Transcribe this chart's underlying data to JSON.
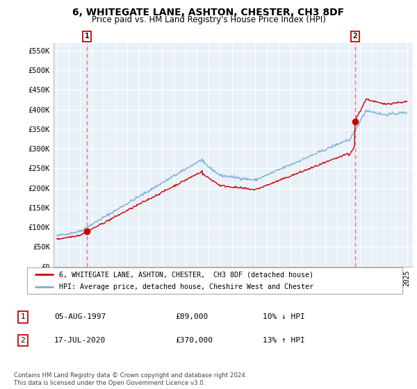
{
  "title": "6, WHITEGATE LANE, ASHTON, CHESTER, CH3 8DF",
  "subtitle": "Price paid vs. HM Land Registry's House Price Index (HPI)",
  "title_fontsize": 10,
  "subtitle_fontsize": 8.5,
  "ylim": [
    0,
    570000
  ],
  "yticks": [
    0,
    50000,
    100000,
    150000,
    200000,
    250000,
    300000,
    350000,
    400000,
    450000,
    500000,
    550000
  ],
  "ytick_labels": [
    "£0",
    "£50K",
    "£100K",
    "£150K",
    "£200K",
    "£250K",
    "£300K",
    "£350K",
    "£400K",
    "£450K",
    "£500K",
    "£550K"
  ],
  "hpi_color": "#7EB0D5",
  "price_color": "#CC0000",
  "dashed_line_color": "#E87070",
  "marker_color": "#CC0000",
  "sale1_year": 1997.58,
  "sale1_price": 89000,
  "sale1_label": "1",
  "sale2_year": 2020.54,
  "sale2_price": 370000,
  "sale2_label": "2",
  "bg_color": "#E8F0F8",
  "grid_color": "#FFFFFF",
  "legend_label1": "6, WHITEGATE LANE, ASHTON, CHESTER,  CH3 8DF (detached house)",
  "legend_label2": "HPI: Average price, detached house, Cheshire West and Chester",
  "table_row1": [
    "1",
    "05-AUG-1997",
    "£89,000",
    "10% ↓ HPI"
  ],
  "table_row2": [
    "2",
    "17-JUL-2020",
    "£370,000",
    "13% ↑ HPI"
  ],
  "footer": "Contains HM Land Registry data © Crown copyright and database right 2024.\nThis data is licensed under the Open Government Licence v3.0."
}
